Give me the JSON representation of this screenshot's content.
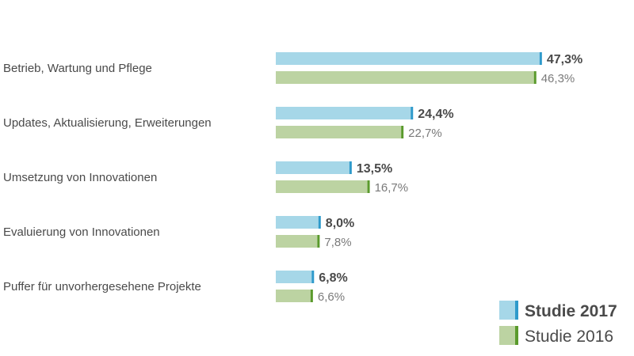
{
  "chart_data": {
    "type": "bar",
    "orientation": "horizontal",
    "categories": [
      "Betrieb, Wartung und Pflege",
      "Updates, Aktualisierung, Erweiterungen",
      "Umsetzung von Innovationen",
      "Evaluierung von Innovationen",
      "Puffer für unvorhergesehene Projekte"
    ],
    "series": [
      {
        "name": "Studie 2017",
        "values": [
          47.3,
          24.4,
          13.5,
          8.0,
          6.8
        ],
        "labels": [
          "47,3%",
          "24,4%",
          "13,5%",
          "8,0%",
          "6,8%"
        ],
        "color": "#a6d7e8",
        "accent": "#2e9acb"
      },
      {
        "name": "Studie 2016",
        "values": [
          46.3,
          22.7,
          16.7,
          7.8,
          6.6
        ],
        "labels": [
          "46,3%",
          "22,7%",
          "16,7%",
          "7,8%",
          "6,6%"
        ],
        "color": "#bcd3a2",
        "accent": "#5a9a2c"
      }
    ],
    "xlim": [
      0,
      50
    ],
    "grid": false,
    "legend_position": "bottom-right"
  }
}
